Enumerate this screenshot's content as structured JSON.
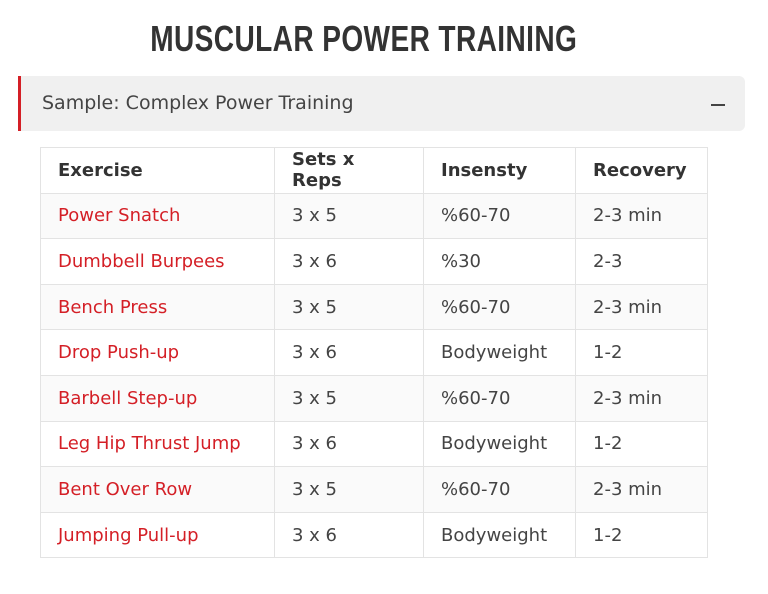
{
  "title": "MUSCULAR POWER TRAINING",
  "accordion": {
    "label": "Sample: Complex Power Training",
    "icon": "minus-icon",
    "accent": "#d41f26"
  },
  "table": {
    "headers": [
      "Exercise",
      "Sets x Reps",
      "Insensty",
      "Recovery"
    ],
    "rows": [
      [
        "Power Snatch",
        "3 x 5",
        "%60-70",
        "2-3 min"
      ],
      [
        "Dumbbell Burpees",
        "3 x 6",
        "%30",
        "2-3"
      ],
      [
        "Bench Press",
        "3 x 5",
        "%60-70",
        "2-3 min"
      ],
      [
        "Drop Push-up",
        "3 x 6",
        "Bodyweight",
        "1-2"
      ],
      [
        "Barbell Step-up",
        "3 x 5",
        "%60-70",
        "2-3 min"
      ],
      [
        "Leg Hip Thrust Jump",
        "3 x 6",
        "Bodyweight",
        "1-2"
      ],
      [
        "Bent Over Row",
        "3 x 5",
        "%60-70",
        "2-3 min"
      ],
      [
        "Jumping Pull-up",
        "3 x 6",
        "Bodyweight",
        "1-2"
      ]
    ]
  }
}
